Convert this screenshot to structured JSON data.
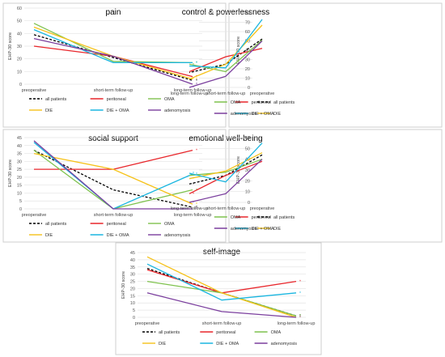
{
  "colors": {
    "all patients": "#000000",
    "peritoneal": "#e8262b",
    "OMA": "#7fc24e",
    "DIE": "#f6c21a",
    "DIE + OMA": "#1ab6e0",
    "adenomyosis": "#7b3f9e"
  },
  "legend_labels": [
    "all patients",
    "peritoneal",
    "OMA",
    "DIE",
    "DIE + OMA",
    "adenomyosis"
  ],
  "chart_data": [
    {
      "type": "line",
      "title": "pain",
      "ylabel": "EHP-30 score",
      "categories": [
        "preoperative",
        "short-term follow-up",
        "long-term follow-up"
      ],
      "ylim": [
        0,
        60
      ],
      "yticks": [
        0,
        10,
        20,
        30,
        40,
        50,
        60
      ],
      "legend_position": "bottom",
      "series": [
        {
          "name": "all patients",
          "values": [
            39,
            21,
            3
          ],
          "dashed": true
        },
        {
          "name": "peritoneal",
          "values": [
            30,
            22,
            6
          ]
        },
        {
          "name": "OMA",
          "values": [
            48,
            18,
            17
          ]
        },
        {
          "name": "DIE",
          "values": [
            45,
            22,
            4
          ]
        },
        {
          "name": "DIE + OMA",
          "values": [
            43,
            17,
            17
          ]
        },
        {
          "name": "adenomyosis",
          "values": [
            36,
            22,
            0
          ]
        }
      ]
    },
    {
      "type": "line",
      "title": "control & powerlessness",
      "ylabel": "EHP-30 score",
      "categories": [
        "preoperative",
        "short-term follow-up",
        "long-term follow-up"
      ],
      "ylim": [
        0,
        80
      ],
      "yticks": [
        0,
        10,
        20,
        30,
        40,
        50,
        60,
        70,
        80
      ],
      "legend_position": "bottom",
      "series": [
        {
          "name": "all patients",
          "values": [
            52,
            25,
            16
          ],
          "dashed": true
        },
        {
          "name": "peritoneal",
          "values": [
            42,
            33,
            17
          ]
        },
        {
          "name": "OMA",
          "values": [
            51,
            17,
            25
          ]
        },
        {
          "name": "DIE",
          "values": [
            67,
            25,
            9
          ]
        },
        {
          "name": "DIE + OMA",
          "values": [
            73,
            21,
            23
          ]
        },
        {
          "name": "adenomyosis",
          "values": [
            50,
            12,
            0
          ]
        }
      ]
    },
    {
      "type": "line",
      "title": "social support",
      "ylabel": "EHP-30 score",
      "categories": [
        "preoperative",
        "short-term follow-up",
        "long-term follow-up"
      ],
      "ylim": [
        0,
        45
      ],
      "yticks": [
        0,
        5,
        10,
        15,
        20,
        25,
        30,
        35,
        40,
        45
      ],
      "legend_position": "bottom",
      "series": [
        {
          "name": "all patients",
          "values": [
            37,
            12,
            1
          ],
          "dashed": true
        },
        {
          "name": "peritoneal",
          "values": [
            25,
            25,
            37
          ]
        },
        {
          "name": "OMA",
          "values": [
            37,
            0,
            12
          ]
        },
        {
          "name": "DIE",
          "values": [
            35,
            25,
            3
          ]
        },
        {
          "name": "DIE + OMA",
          "values": [
            42,
            0,
            22
          ]
        },
        {
          "name": "adenomyosis",
          "values": [
            43,
            0,
            0
          ]
        }
      ]
    },
    {
      "type": "line",
      "title": "emotional well-being",
      "ylabel": "EHP-30 score",
      "categories": [
        "preoperative",
        "short-term follow-up",
        "long-term follow-up"
      ],
      "ylim": [
        0,
        60
      ],
      "yticks": [
        0,
        10,
        20,
        30,
        40,
        50,
        60
      ],
      "legend_position": "bottom",
      "series": [
        {
          "name": "all patients",
          "values": [
            44,
            25,
            17
          ],
          "dashed": true
        },
        {
          "name": "peritoneal",
          "values": [
            38,
            25,
            8
          ]
        },
        {
          "name": "OMA",
          "values": [
            40,
            28,
            25
          ]
        },
        {
          "name": "DIE",
          "values": [
            46,
            29,
            22
          ]
        },
        {
          "name": "DIE + OMA",
          "values": [
            55,
            19,
            27
          ]
        },
        {
          "name": "adenomyosis",
          "values": [
            40,
            8,
            0
          ]
        }
      ]
    },
    {
      "type": "line",
      "title": "self-image",
      "ylabel": "EHP-30 score",
      "categories": [
        "preoperative",
        "short-term follow-up",
        "long-term follow-up"
      ],
      "ylim": [
        0,
        45
      ],
      "yticks": [
        0,
        5,
        10,
        15,
        20,
        25,
        30,
        35,
        40,
        45
      ],
      "legend_position": "bottom",
      "series": [
        {
          "name": "all patients",
          "values": [
            34,
            17,
            1
          ],
          "dashed": true
        },
        {
          "name": "peritoneal",
          "values": [
            33,
            17,
            25
          ]
        },
        {
          "name": "OMA",
          "values": [
            25,
            17,
            1
          ]
        },
        {
          "name": "DIE",
          "values": [
            42,
            17,
            0
          ]
        },
        {
          "name": "DIE + OMA",
          "values": [
            37,
            12,
            17
          ]
        },
        {
          "name": "adenomyosis",
          "values": [
            17,
            4,
            0
          ]
        }
      ]
    }
  ]
}
